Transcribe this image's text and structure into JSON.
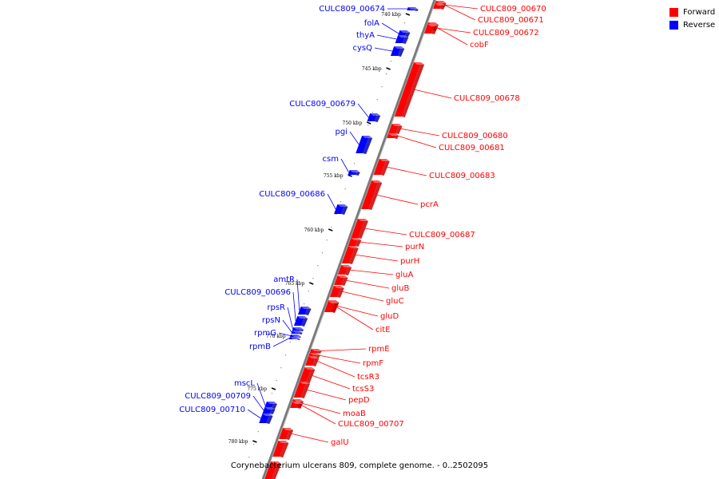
{
  "legend": {
    "items": [
      {
        "label": "Forward",
        "color": "#ff0000"
      },
      {
        "label": "Reverse",
        "color": "#0000ff"
      }
    ]
  },
  "caption": "Corynebacterium ulcerans 809, complete genome. - 0..2502095",
  "colors": {
    "forward": "#ff0000",
    "reverse": "#0000ff",
    "backbone": "#808080"
  },
  "ticks": [
    "740 kbp",
    "745 kbp",
    "750 kbp",
    "755 kbp",
    "760 kbp",
    "765 kbp",
    "770 kbp",
    "775 kbp",
    "780 kbp"
  ],
  "forward_genes": [
    "CULC809_00670",
    "CULC809_00671",
    "CULC809_00672",
    "cobF",
    "CULC809_00678",
    "CULC809_00680",
    "CULC809_00681",
    "CULC809_00683",
    "pcrA",
    "CULC809_00687",
    "purN",
    "purH",
    "gluA",
    "gluB",
    "gluC",
    "gluD",
    "citE",
    "rpmE",
    "rpmF",
    "tcsR3",
    "tcsS3",
    "pepD",
    "moaB",
    "CULC809_00707",
    "galU"
  ],
  "reverse_genes": [
    "CULC809_00674",
    "folA",
    "thyA",
    "cysQ",
    "CULC809_00679",
    "pgi",
    "csm",
    "CULC809_00686",
    "amtR",
    "CULC809_00696",
    "rpsR",
    "rpsN",
    "rpmG",
    "rpmB",
    "mscL",
    "CULC809_00709",
    "CULC809_00710"
  ]
}
